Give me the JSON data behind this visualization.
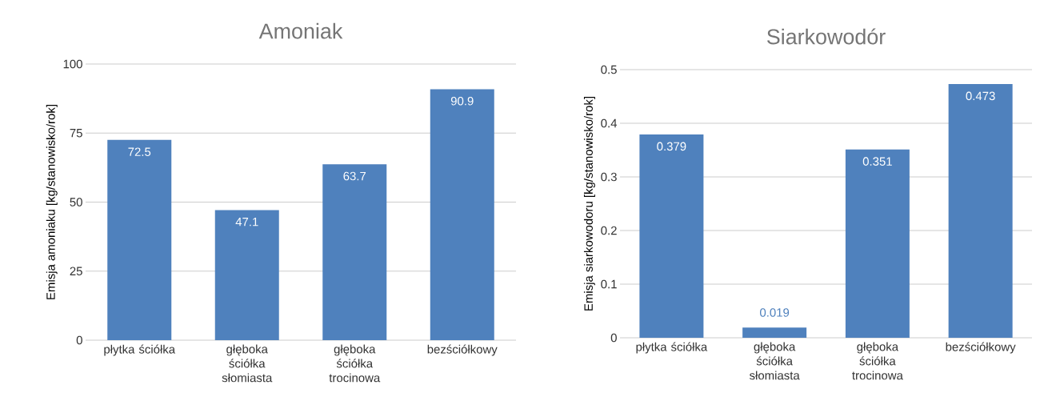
{
  "chart_data": [
    {
      "type": "bar",
      "title": "Amoniak",
      "ylabel": "Emisja amoniaku [kg/stanowisko/rok]",
      "categories": [
        "płytka ściółka",
        "głęboka ściółka słomiasta",
        "głęboka ściółka trocinowa",
        "bezściółkowy"
      ],
      "values": [
        72.5,
        47.1,
        63.7,
        90.9
      ],
      "color": "#4f81bd",
      "ylim": [
        0,
        100
      ],
      "yticks": [
        0,
        25,
        50,
        75,
        100
      ],
      "grid": "y",
      "data_labels": true
    },
    {
      "type": "bar",
      "title": "Siarkowodór",
      "ylabel": "Emisja siarkowodoru [kg/stanowisko/rok]",
      "categories": [
        "płytka ściółka",
        "głęboka ściółka słomiasta",
        "głęboka ściółka trocinowa",
        "bezściółkowy"
      ],
      "values": [
        0.379,
        0.019,
        0.351,
        0.473
      ],
      "color": "#4f81bd",
      "ylim": [
        0,
        0.5
      ],
      "yticks": [
        0,
        0.1,
        0.2,
        0.3,
        0.4,
        0.5
      ],
      "grid": "y",
      "data_labels": true
    }
  ]
}
